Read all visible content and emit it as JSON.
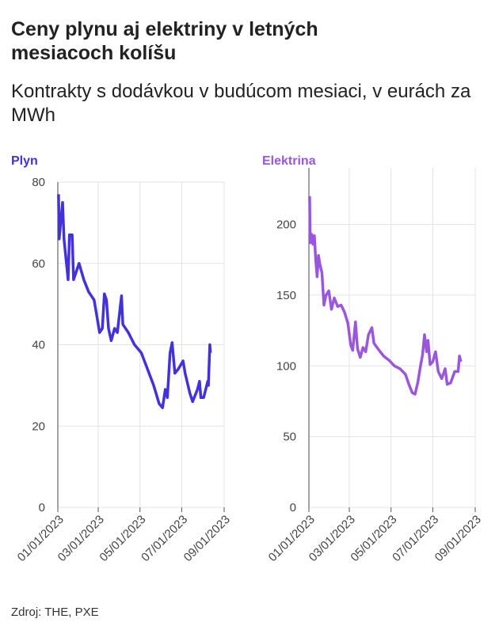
{
  "title": "Ceny plynu aj elektriny v letných mesiacoch kolíšu",
  "subtitle": "Kontrakty s dodávkou v budúcom mesiaci, v eurách za MWh",
  "source": "Zdroj: THE, PXE",
  "chart_data": [
    {
      "type": "line",
      "title": "Plyn",
      "color": "#4231de",
      "x": [
        "01/02/2023",
        "01/03/2023",
        "01/08/2023",
        "01/10/2023",
        "01/16/2023",
        "01/18/2023",
        "01/22/2023",
        "01/24/2023",
        "02/01/2023",
        "02/08/2023",
        "02/15/2023",
        "02/23/2023",
        "02/27/2023",
        "03/03/2023",
        "03/07/2023",
        "03/10/2023",
        "03/13/2023",
        "03/16/2023",
        "03/20/2023",
        "03/25/2023",
        "03/29/2023",
        "04/04/2023",
        "04/06/2023",
        "04/14/2023",
        "04/23/2023",
        "05/03/2023",
        "05/12/2023",
        "05/21/2023",
        "05/29/2023",
        "06/03/2023",
        "06/07/2023",
        "06/10/2023",
        "06/14/2023",
        "06/17/2023",
        "06/21/2023",
        "06/26/2023",
        "07/03/2023",
        "07/06/2023",
        "07/13/2023",
        "07/17/2023",
        "07/24/2023",
        "07/27/2023",
        "07/29/2023",
        "08/02/2023",
        "08/08/2023",
        "08/09/2023",
        "08/11/2023",
        "08/12/2023"
      ],
      "values": [
        77,
        66,
        75,
        66,
        56,
        67,
        67,
        56,
        60,
        56,
        53,
        51,
        47,
        43,
        44,
        52.5,
        51,
        44,
        41,
        44,
        43,
        52,
        45,
        43,
        40,
        38,
        34,
        30,
        25.5,
        24.5,
        29,
        27,
        38,
        40.5,
        33,
        34,
        36,
        33,
        28,
        26,
        29,
        31,
        27,
        27,
        31,
        30,
        40,
        38
      ],
      "xlim": [
        "01/01/2023",
        "09/01/2023"
      ],
      "xticks": [
        "01/01/2023",
        "03/01/2023",
        "05/01/2023",
        "07/01/2023",
        "09/01/2023"
      ],
      "ylim": [
        0,
        80
      ],
      "yticks": [
        0,
        20,
        40,
        60,
        80
      ],
      "grid": true
    },
    {
      "type": "line",
      "title": "Elektrina",
      "color": "#9a57de",
      "x": [
        "01/02/2023",
        "01/03/2023",
        "01/05/2023",
        "01/07/2023",
        "01/09/2023",
        "01/11/2023",
        "01/13/2023",
        "01/15/2023",
        "01/17/2023",
        "01/20/2023",
        "01/23/2023",
        "01/26/2023",
        "01/30/2023",
        "02/03/2023",
        "02/07/2023",
        "02/12/2023",
        "02/17/2023",
        "02/22/2023",
        "02/27/2023",
        "03/03/2023",
        "03/06/2023",
        "03/10/2023",
        "03/13/2023",
        "03/17/2023",
        "03/21/2023",
        "03/25/2023",
        "03/29/2023",
        "04/03/2023",
        "04/06/2023",
        "04/12/2023",
        "04/20/2023",
        "04/28/2023",
        "05/06/2023",
        "05/14/2023",
        "05/22/2023",
        "05/27/2023",
        "06/01/2023",
        "06/05/2023",
        "06/09/2023",
        "06/13/2023",
        "06/16/2023",
        "06/19/2023",
        "06/22/2023",
        "06/24/2023",
        "06/27/2023",
        "07/01/2023",
        "07/05/2023",
        "07/09/2023",
        "07/14/2023",
        "07/19/2023",
        "07/22/2023",
        "07/27/2023",
        "08/02/2023",
        "08/07/2023",
        "08/09/2023",
        "08/11/2023"
      ],
      "values": [
        220,
        187,
        193,
        186,
        192,
        175,
        163,
        178,
        172,
        166,
        143,
        150,
        153,
        140,
        148,
        142,
        143,
        138,
        130,
        115,
        111,
        131,
        112,
        106,
        113,
        110,
        122,
        127,
        116,
        112,
        107,
        104,
        100,
        98,
        94,
        87,
        81,
        80,
        88,
        100,
        108,
        122,
        110,
        118,
        101,
        103,
        110,
        96,
        91,
        98,
        87,
        88,
        96,
        96,
        107,
        103
      ],
      "xlim": [
        "01/01/2023",
        "09/01/2023"
      ],
      "xticks": [
        "01/01/2023",
        "03/01/2023",
        "05/01/2023",
        "07/01/2023",
        "09/01/2023"
      ],
      "ylim": [
        0,
        240
      ],
      "yticks": [
        0,
        50,
        100,
        150,
        200
      ],
      "grid": true
    }
  ]
}
